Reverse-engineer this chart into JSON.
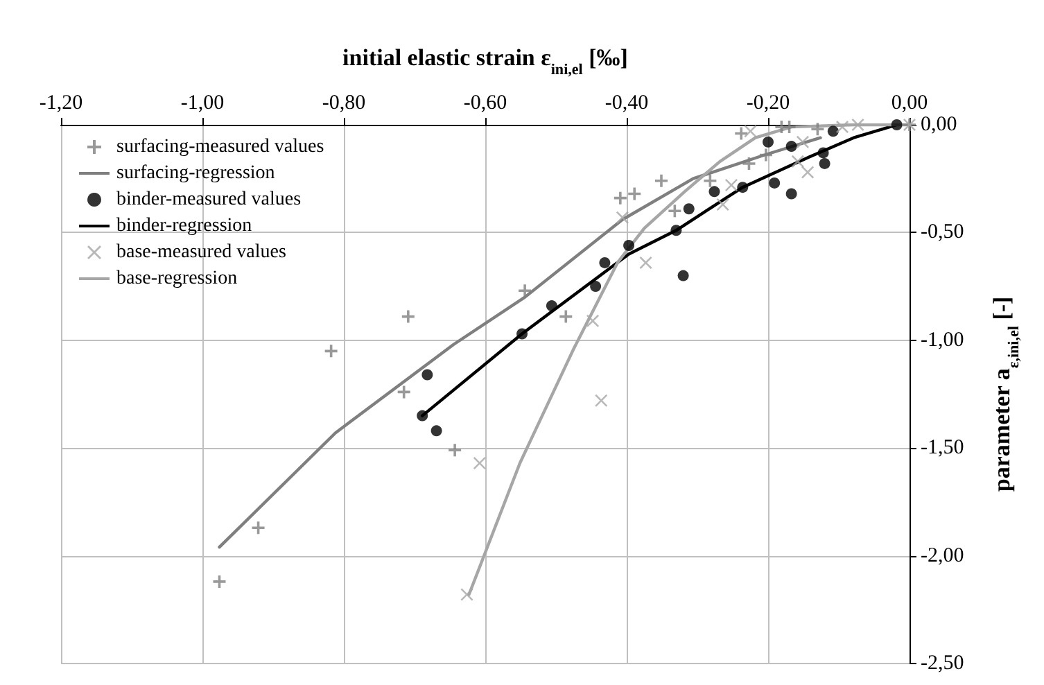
{
  "chart_data": {
    "type": "scatter",
    "xlabel": "initial elastic strain ε$_{ini,el}$ [‰]",
    "ylabel": "parameter a$_{ε,ini,el}$ [-]",
    "xlim": [
      -1.2,
      0
    ],
    "xticks": [
      {
        "value": -1.2,
        "label": "-1,20"
      },
      {
        "value": -1,
        "label": "-1,00"
      },
      {
        "value": -0.8,
        "label": "-0,80"
      },
      {
        "value": -0.6,
        "label": "-0,60"
      },
      {
        "value": -0.4,
        "label": "-0,40"
      },
      {
        "value": -0.2,
        "label": "-0,20"
      },
      {
        "value": 0,
        "label": "0,00"
      }
    ],
    "ylim": [
      -2.5,
      0
    ],
    "yticks": [
      {
        "value": -2.5,
        "label": "-2,50"
      },
      {
        "value": -2,
        "label": "-2,00"
      },
      {
        "value": -1.5,
        "label": "-1,50"
      },
      {
        "value": -1,
        "label": "-1,00"
      },
      {
        "value": -0.5,
        "label": "-0,50"
      },
      {
        "value": 0,
        "label": "0,00"
      }
    ],
    "grid": true,
    "legend": "top left",
    "series": [
      {
        "name": "surfacing-measured values",
        "marker": "cross",
        "color": "#7f7f7f",
        "x": [
          -0.976,
          -0.921,
          -0.818,
          -0.715,
          -0.709,
          -0.643,
          -0.544,
          -0.486,
          -0.409,
          -0.389,
          -0.351,
          -0.332,
          -0.282,
          -0.238,
          -0.227,
          -0.203,
          -0.181,
          -0.17,
          -0.13,
          0
        ],
        "values": [
          -2.12,
          -1.87,
          -1.05,
          -1.24,
          -0.89,
          -1.51,
          -0.77,
          -0.89,
          -0.34,
          -0.32,
          -0.26,
          -0.4,
          -0.26,
          -0.04,
          -0.18,
          -0.14,
          -0.01,
          -0.01,
          -0.02,
          0
        ]
      },
      {
        "name": "surfacing-regression",
        "type": "line",
        "marker": "none",
        "color": "#7f7f7f",
        "x": [
          -0.976,
          -0.812,
          -0.645,
          -0.544,
          -0.406,
          -0.306,
          -0.205,
          -0.126
        ],
        "values": [
          -1.96,
          -1.43,
          -1.02,
          -0.8,
          -0.44,
          -0.25,
          -0.14,
          -0.06
        ]
      },
      {
        "name": "binder-measured values",
        "marker": "circle",
        "color": "#000000",
        "x": [
          -0.689,
          -0.682,
          -0.669,
          -0.548,
          -0.506,
          -0.444,
          -0.431,
          -0.397,
          -0.33,
          -0.32,
          -0.312,
          -0.276,
          -0.236,
          -0.2,
          -0.191,
          -0.167,
          -0.167,
          -0.122,
          -0.12,
          -0.108,
          -0.018
        ],
        "values": [
          -1.35,
          -1.16,
          -1.42,
          -0.97,
          -0.84,
          -0.75,
          -0.64,
          -0.56,
          -0.49,
          -0.7,
          -0.39,
          -0.31,
          -0.29,
          -0.08,
          -0.27,
          -0.32,
          -0.1,
          -0.13,
          -0.18,
          -0.03,
          0
        ]
      },
      {
        "name": "binder-regression",
        "type": "line",
        "marker": "none",
        "color": "#000000",
        "x": [
          -0.689,
          -0.548,
          -0.397,
          -0.33,
          -0.236,
          -0.142,
          -0.079,
          -0.018
        ],
        "values": [
          -1.35,
          -0.97,
          -0.6,
          -0.49,
          -0.29,
          -0.15,
          -0.06,
          0
        ]
      },
      {
        "name": "base-measured values",
        "marker": "x",
        "color": "#a6a6a6",
        "x": [
          -0.626,
          -0.608,
          -0.448,
          -0.436,
          -0.406,
          -0.373,
          -0.264,
          -0.252,
          -0.225,
          -0.158,
          -0.151,
          -0.144,
          -0.095,
          -0.073,
          0
        ],
        "values": [
          -2.18,
          -1.57,
          -0.91,
          -1.28,
          -0.43,
          -0.64,
          -0.37,
          -0.28,
          -0.03,
          -0.17,
          -0.08,
          -0.22,
          -0.01,
          0,
          0
        ]
      },
      {
        "name": "base-regression",
        "type": "line",
        "marker": "none",
        "color": "#a6a6a6",
        "x": [
          -0.623,
          -0.551,
          -0.475,
          -0.413,
          -0.375,
          -0.318,
          -0.268,
          -0.218,
          -0.167,
          -0.079,
          0
        ],
        "values": [
          -2.18,
          -1.57,
          -1.04,
          -0.64,
          -0.48,
          -0.31,
          -0.17,
          -0.06,
          -0.01,
          0,
          0
        ]
      }
    ]
  }
}
